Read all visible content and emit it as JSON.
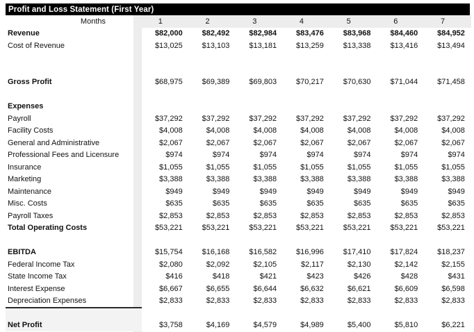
{
  "title": "Profit and Loss Statement (First Year)",
  "months_label": "Months",
  "month_headers": [
    "1",
    "2",
    "3",
    "4",
    "5",
    "6",
    "7"
  ],
  "rows": [
    {
      "label": "Revenue",
      "label_bold": true,
      "values_bold": true,
      "values": [
        "$82,000",
        "$82,492",
        "$82,984",
        "$83,476",
        "$83,968",
        "$84,460",
        "$84,952"
      ]
    },
    {
      "label": "Cost of Revenue",
      "values": [
        "$13,025",
        "$13,103",
        "$13,181",
        "$13,259",
        "$13,338",
        "$13,416",
        "$13,494"
      ]
    },
    {
      "blank": true
    },
    {
      "blank": true
    },
    {
      "label": "Gross Profit",
      "label_bold": true,
      "values": [
        "$68,975",
        "$69,389",
        "$69,803",
        "$70,217",
        "$70,630",
        "$71,044",
        "$71,458"
      ]
    },
    {
      "blank": true
    },
    {
      "label": "Expenses",
      "label_bold": true,
      "values": []
    },
    {
      "label": "Payroll",
      "values": [
        "$37,292",
        "$37,292",
        "$37,292",
        "$37,292",
        "$37,292",
        "$37,292",
        "$37,292"
      ]
    },
    {
      "label": "Facility Costs",
      "values": [
        "$4,008",
        "$4,008",
        "$4,008",
        "$4,008",
        "$4,008",
        "$4,008",
        "$4,008"
      ]
    },
    {
      "label": "General and Administrative",
      "values": [
        "$2,067",
        "$2,067",
        "$2,067",
        "$2,067",
        "$2,067",
        "$2,067",
        "$2,067"
      ]
    },
    {
      "label": "Professional Fees and Licensure",
      "values": [
        "$974",
        "$974",
        "$974",
        "$974",
        "$974",
        "$974",
        "$974"
      ]
    },
    {
      "label": "Insurance",
      "values": [
        "$1,055",
        "$1,055",
        "$1,055",
        "$1,055",
        "$1,055",
        "$1,055",
        "$1,055"
      ]
    },
    {
      "label": "Marketing",
      "values": [
        "$3,388",
        "$3,388",
        "$3,388",
        "$3,388",
        "$3,388",
        "$3,388",
        "$3,388"
      ]
    },
    {
      "label": "Maintenance",
      "values": [
        "$949",
        "$949",
        "$949",
        "$949",
        "$949",
        "$949",
        "$949"
      ]
    },
    {
      "label": "Misc. Costs",
      "values": [
        "$635",
        "$635",
        "$635",
        "$635",
        "$635",
        "$635",
        "$635"
      ]
    },
    {
      "label": "Payroll Taxes",
      "values": [
        "$2,853",
        "$2,853",
        "$2,853",
        "$2,853",
        "$2,853",
        "$2,853",
        "$2,853"
      ]
    },
    {
      "label": "Total Operating Costs",
      "label_bold": true,
      "values": [
        "$53,221",
        "$53,221",
        "$53,221",
        "$53,221",
        "$53,221",
        "$53,221",
        "$53,221"
      ]
    },
    {
      "blank": true
    },
    {
      "label": "EBITDA",
      "label_bold": true,
      "values": [
        "$15,754",
        "$16,168",
        "$16,582",
        "$16,996",
        "$17,410",
        "$17,824",
        "$18,237"
      ]
    },
    {
      "label": "Federal Income Tax",
      "values": [
        "$2,080",
        "$2,092",
        "$2,105",
        "$2,117",
        "$2,130",
        "$2,142",
        "$2,155"
      ]
    },
    {
      "label": "State Income Tax",
      "values": [
        "$416",
        "$418",
        "$421",
        "$423",
        "$426",
        "$428",
        "$431"
      ]
    },
    {
      "label": "Interest Expense",
      "values": [
        "$6,667",
        "$6,655",
        "$6,644",
        "$6,632",
        "$6,621",
        "$6,609",
        "$6,598"
      ]
    },
    {
      "label": "Depreciation Expenses",
      "values": [
        "$2,833",
        "$2,833",
        "$2,833",
        "$2,833",
        "$2,833",
        "$2,833",
        "$2,833"
      ]
    },
    {
      "blank": true,
      "top_border": true,
      "shaded": true
    },
    {
      "label": "Net Profit",
      "label_bold": true,
      "shaded": true,
      "values": [
        "$3,758",
        "$4,169",
        "$4,579",
        "$4,989",
        "$5,400",
        "$5,810",
        "$6,221"
      ]
    }
  ],
  "colors": {
    "title_bar_bg": "#000000",
    "title_text": "#ffffff",
    "header_band_bg": "#ededed",
    "text": "#111111",
    "net_profit_border": "#2a2a2a"
  }
}
